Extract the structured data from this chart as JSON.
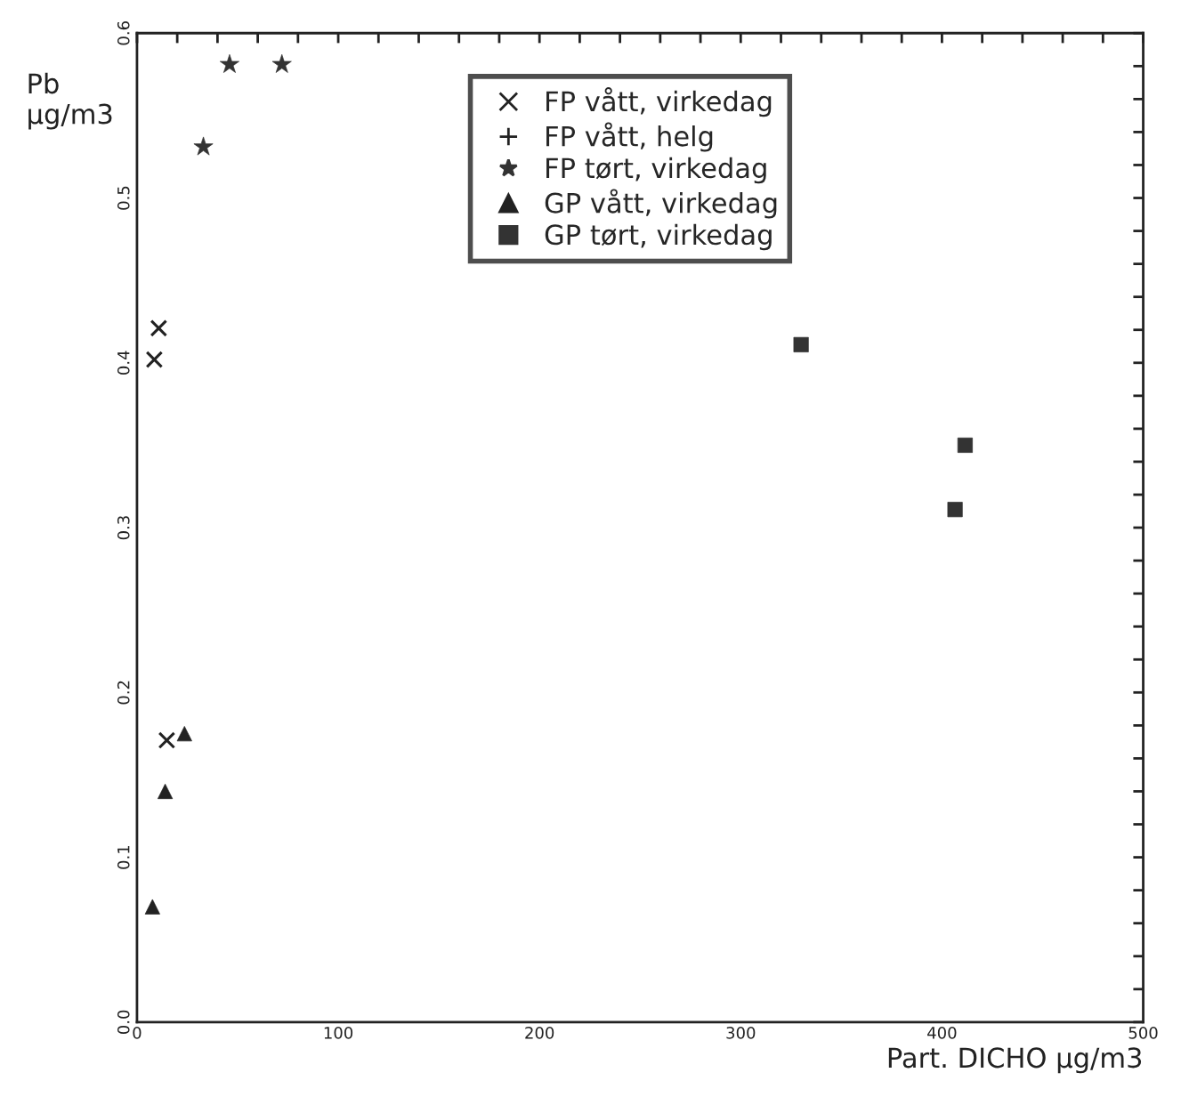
{
  "chart_data": {
    "type": "scatter",
    "xlabel": "Part. DICHO µg/m3",
    "ylabel": "Pb\nµg/m3",
    "xlim": [
      0,
      500
    ],
    "ylim": [
      0,
      0.6
    ],
    "xticks": [
      0,
      {
        "value": 20,
        "label": null
      },
      {
        "value": 40,
        "label": null
      },
      {
        "value": 60,
        "label": null
      },
      {
        "value": 80,
        "label": null
      },
      100,
      {
        "value": 120,
        "label": null
      },
      {
        "value": 140,
        "label": null
      },
      {
        "value": 160,
        "label": null
      },
      {
        "value": 180,
        "label": null
      },
      200,
      {
        "value": 220,
        "label": null
      },
      {
        "value": 240,
        "label": null
      },
      {
        "value": 260,
        "label": null
      },
      {
        "value": 280,
        "label": null
      },
      300,
      {
        "value": 320,
        "label": null
      },
      {
        "value": 340,
        "label": null
      },
      {
        "value": 360,
        "label": null
      },
      {
        "value": 380,
        "label": null
      },
      400,
      {
        "value": 420,
        "label": null
      },
      {
        "value": 440,
        "label": null
      },
      {
        "value": 460,
        "label": null
      },
      {
        "value": 480,
        "label": null
      },
      500
    ],
    "yticks": [
      {
        "value": 0,
        "label": "0.0"
      },
      {
        "value": 0.02,
        "label": null
      },
      {
        "value": 0.04,
        "label": null
      },
      {
        "value": 0.06,
        "label": null
      },
      {
        "value": 0.08,
        "label": null
      },
      0.1,
      {
        "value": 0.12,
        "label": null
      },
      {
        "value": 0.14,
        "label": null
      },
      {
        "value": 0.16,
        "label": null
      },
      {
        "value": 0.18,
        "label": null
      },
      0.2,
      {
        "value": 0.22,
        "label": null
      },
      {
        "value": 0.24,
        "label": null
      },
      {
        "value": 0.26,
        "label": null
      },
      {
        "value": 0.28,
        "label": null
      },
      0.3,
      {
        "value": 0.32,
        "label": null
      },
      {
        "value": 0.34,
        "label": null
      },
      {
        "value": 0.36,
        "label": null
      },
      {
        "value": 0.38,
        "label": null
      },
      0.4,
      {
        "value": 0.42,
        "label": null
      },
      {
        "value": 0.44,
        "label": null
      },
      {
        "value": 0.46,
        "label": null
      },
      {
        "value": 0.48,
        "label": null
      },
      0.5,
      {
        "value": 0.52,
        "label": null
      },
      {
        "value": 0.54,
        "label": null
      },
      {
        "value": 0.56,
        "label": null
      },
      {
        "value": 0.58,
        "label": null
      },
      0.6
    ],
    "grid": false,
    "legend": "top",
    "series": [
      {
        "name": "FP vått, virkedag",
        "color": "#222222",
        "marker": "cross",
        "x": [
          8.6,
          10.8,
          14.8
        ],
        "values": [
          0.402,
          0.421,
          0.171
        ]
      },
      {
        "name": "FP vått, helg",
        "color": "#222222",
        "marker": "plus"
      },
      {
        "name": "FP tørt, virkedag",
        "color": "#333333",
        "marker": "star",
        "x": [
          33,
          46,
          72
        ],
        "values": [
          0.531,
          0.581,
          0.581
        ]
      },
      {
        "name": "GP vått, virkedag",
        "color": "#222222",
        "marker": "triangle",
        "x": [
          7.7,
          14,
          23.6
        ],
        "values": [
          0.07,
          0.14,
          0.175
        ]
      },
      {
        "name": "GP tørt, virkedag",
        "color": "#333333",
        "marker": "square",
        "x": [
          330,
          406.5,
          411.5
        ],
        "values": [
          0.411,
          0.311,
          0.35
        ]
      }
    ]
  }
}
